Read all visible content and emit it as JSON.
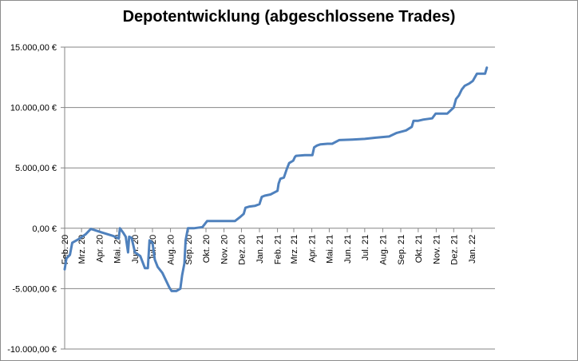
{
  "chart_data": {
    "type": "line",
    "title": "Depotentwicklung (abgeschlossene Trades)",
    "xlabel": "",
    "ylabel": "",
    "ylim": [
      -10000,
      15000
    ],
    "ytick_values": [
      15000,
      10000,
      5000,
      0,
      -5000,
      -10000
    ],
    "ytick_labels": [
      "15.000,00 €",
      "10.000,00 €",
      "5.000,00 €",
      "0,00 €",
      "-5.000,00 €",
      "-10.000,00 €"
    ],
    "x_range": [
      "2020-02-01",
      "2022-02-10"
    ],
    "x_ticks": [
      {
        "date": "2020-02-01",
        "label": "Feb. 20"
      },
      {
        "date": "2020-03-01",
        "label": "Mrz. 20"
      },
      {
        "date": "2020-04-01",
        "label": "Apr. 20"
      },
      {
        "date": "2020-05-01",
        "label": "Mai. 20"
      },
      {
        "date": "2020-06-01",
        "label": "Jun. 20"
      },
      {
        "date": "2020-07-01",
        "label": "Jul. 20"
      },
      {
        "date": "2020-08-01",
        "label": "Aug. 20"
      },
      {
        "date": "2020-09-01",
        "label": "Sep. 20"
      },
      {
        "date": "2020-10-01",
        "label": "Okt. 20"
      },
      {
        "date": "2020-11-01",
        "label": "Nov. 20"
      },
      {
        "date": "2020-12-01",
        "label": "Dez. 20"
      },
      {
        "date": "2021-01-01",
        "label": "Jan. 21"
      },
      {
        "date": "2021-02-01",
        "label": "Feb. 21"
      },
      {
        "date": "2021-03-01",
        "label": "Mrz. 21"
      },
      {
        "date": "2021-04-01",
        "label": "Apr. 21"
      },
      {
        "date": "2021-05-01",
        "label": "Mai. 21"
      },
      {
        "date": "2021-06-01",
        "label": "Jun. 21"
      },
      {
        "date": "2021-07-01",
        "label": "Jul. 21"
      },
      {
        "date": "2021-08-01",
        "label": "Aug. 21"
      },
      {
        "date": "2021-09-01",
        "label": "Sep. 21"
      },
      {
        "date": "2021-10-01",
        "label": "Okt. 21"
      },
      {
        "date": "2021-11-01",
        "label": "Nov. 21"
      },
      {
        "date": "2021-12-01",
        "label": "Dez. 21"
      },
      {
        "date": "2022-01-01",
        "label": "Jan. 22"
      }
    ],
    "grid": "horizontal",
    "legend": "none",
    "series": [
      {
        "color": "#4f81bd",
        "points": [
          [
            "2020-02-01",
            -3400
          ],
          [
            "2020-02-04",
            -2500
          ],
          [
            "2020-02-10",
            -2200
          ],
          [
            "2020-02-14",
            -1200
          ],
          [
            "2020-02-25",
            -900
          ],
          [
            "2020-03-08",
            -500
          ],
          [
            "2020-03-17",
            -50
          ],
          [
            "2020-04-05",
            -350
          ],
          [
            "2020-04-25",
            -650
          ],
          [
            "2020-05-04",
            -850
          ],
          [
            "2020-05-06",
            0
          ],
          [
            "2020-05-12",
            -400
          ],
          [
            "2020-05-16",
            -700
          ],
          [
            "2020-05-20",
            -2000
          ],
          [
            "2020-05-22",
            -700
          ],
          [
            "2020-05-26",
            -800
          ],
          [
            "2020-06-01",
            -2000
          ],
          [
            "2020-06-10",
            -2300
          ],
          [
            "2020-06-18",
            -3300
          ],
          [
            "2020-06-23",
            -3300
          ],
          [
            "2020-06-26",
            -1000
          ],
          [
            "2020-07-01",
            -1200
          ],
          [
            "2020-07-05",
            -2600
          ],
          [
            "2020-07-10",
            -3200
          ],
          [
            "2020-07-18",
            -3700
          ],
          [
            "2020-07-26",
            -4500
          ],
          [
            "2020-07-30",
            -4900
          ],
          [
            "2020-08-03",
            -5200
          ],
          [
            "2020-08-11",
            -5200
          ],
          [
            "2020-08-18",
            -5000
          ],
          [
            "2020-08-21",
            -3900
          ],
          [
            "2020-08-25",
            -2900
          ],
          [
            "2020-08-27",
            -1000
          ],
          [
            "2020-08-31",
            0
          ],
          [
            "2020-09-10",
            0
          ],
          [
            "2020-09-25",
            100
          ],
          [
            "2020-10-03",
            600
          ],
          [
            "2020-10-20",
            600
          ],
          [
            "2020-11-20",
            600
          ],
          [
            "2020-11-28",
            900
          ],
          [
            "2020-12-05",
            1200
          ],
          [
            "2020-12-08",
            1700
          ],
          [
            "2020-12-15",
            1800
          ],
          [
            "2020-12-24",
            1850
          ],
          [
            "2021-01-01",
            2000
          ],
          [
            "2021-01-05",
            2600
          ],
          [
            "2021-01-10",
            2700
          ],
          [
            "2021-01-20",
            2800
          ],
          [
            "2021-01-28",
            3000
          ],
          [
            "2021-02-01",
            3100
          ],
          [
            "2021-02-03",
            3700
          ],
          [
            "2021-02-06",
            4100
          ],
          [
            "2021-02-12",
            4200
          ],
          [
            "2021-02-17",
            4900
          ],
          [
            "2021-02-21",
            5400
          ],
          [
            "2021-02-28",
            5600
          ],
          [
            "2021-03-03",
            5900
          ],
          [
            "2021-03-05",
            6000
          ],
          [
            "2021-03-20",
            6050
          ],
          [
            "2021-04-02",
            6050
          ],
          [
            "2021-04-05",
            6700
          ],
          [
            "2021-04-10",
            6850
          ],
          [
            "2021-04-16",
            6950
          ],
          [
            "2021-04-28",
            7000
          ],
          [
            "2021-05-06",
            7000
          ],
          [
            "2021-05-18",
            7300
          ],
          [
            "2021-06-10",
            7350
          ],
          [
            "2021-07-01",
            7400
          ],
          [
            "2021-07-20",
            7500
          ],
          [
            "2021-08-12",
            7600
          ],
          [
            "2021-08-25",
            7900
          ],
          [
            "2021-09-10",
            8100
          ],
          [
            "2021-09-20",
            8400
          ],
          [
            "2021-09-23",
            8900
          ],
          [
            "2021-10-01",
            8900
          ],
          [
            "2021-10-10",
            9000
          ],
          [
            "2021-10-25",
            9100
          ],
          [
            "2021-10-31",
            9500
          ],
          [
            "2021-11-20",
            9500
          ],
          [
            "2021-12-01",
            10000
          ],
          [
            "2021-12-05",
            10700
          ],
          [
            "2021-12-10",
            11000
          ],
          [
            "2021-12-15",
            11500
          ],
          [
            "2021-12-20",
            11800
          ],
          [
            "2021-12-28",
            12000
          ],
          [
            "2022-01-03",
            12200
          ],
          [
            "2022-01-10",
            12800
          ],
          [
            "2022-01-24",
            12800
          ],
          [
            "2022-01-27",
            13300
          ]
        ]
      }
    ]
  }
}
